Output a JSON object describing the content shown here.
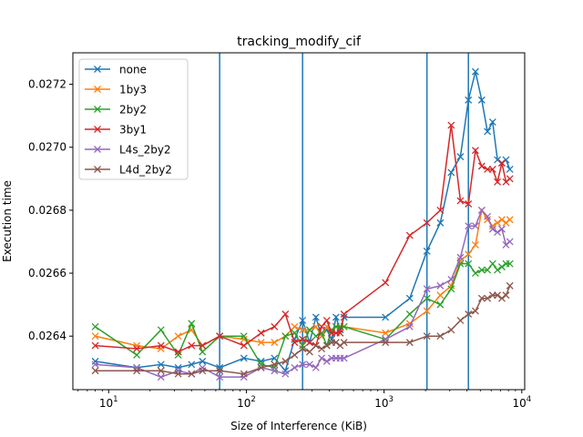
{
  "chart_data": {
    "type": "line",
    "title": "tracking_modify_cif",
    "xlabel": "Size of Interference (KiB)",
    "ylabel": "Execution time",
    "xscale": "log",
    "xlim": [
      5.5,
      10500
    ],
    "ylim": [
      0.02623,
      0.0273
    ],
    "grid": false,
    "legend_position": "top-left",
    "x_ticks": [
      {
        "value": 10,
        "base": "10",
        "exp": "1"
      },
      {
        "value": 100,
        "base": "10",
        "exp": "2"
      },
      {
        "value": 1000,
        "base": "10",
        "exp": "3"
      },
      {
        "value": 10000,
        "base": "10",
        "exp": "4"
      }
    ],
    "y_ticks": [
      {
        "value": 0.0264,
        "label": "0.0264"
      },
      {
        "value": 0.0266,
        "label": "0.0266"
      },
      {
        "value": 0.0268,
        "label": "0.0268"
      },
      {
        "value": 0.027,
        "label": "0.0270"
      },
      {
        "value": 0.0272,
        "label": "0.0272"
      }
    ],
    "vlines": {
      "color": "#1f77b4",
      "x": [
        64,
        256,
        2048,
        4096
      ]
    },
    "series": [
      {
        "name": "none",
        "color": "#1f77b4",
        "x": [
          8,
          16,
          24,
          32,
          40,
          48,
          64,
          96,
          128,
          160,
          192,
          224,
          256,
          288,
          320,
          352,
          384,
          416,
          448,
          480,
          512,
          1024,
          1536,
          2048,
          2560,
          3072,
          3584,
          4096,
          4608,
          5120,
          5632,
          6144,
          6656,
          7168,
          7680,
          8192
        ],
        "y": [
          0.02632,
          0.0263,
          0.02631,
          0.0263,
          0.02631,
          0.02632,
          0.0263,
          0.02633,
          0.02632,
          0.02633,
          0.02629,
          0.02639,
          0.02645,
          0.02638,
          0.02646,
          0.0264,
          0.02642,
          0.02639,
          0.02646,
          0.02642,
          0.02646,
          0.02646,
          0.02652,
          0.02667,
          0.02676,
          0.02692,
          0.02697,
          0.02715,
          0.02724,
          0.02715,
          0.02705,
          0.02708,
          0.02696,
          0.02695,
          0.02696,
          0.02693
        ]
      },
      {
        "name": "1by3",
        "color": "#ff7f0e",
        "x": [
          8,
          16,
          24,
          32,
          40,
          48,
          64,
          96,
          128,
          160,
          192,
          224,
          256,
          288,
          320,
          352,
          384,
          416,
          448,
          480,
          512,
          1024,
          1536,
          2048,
          2560,
          3072,
          3584,
          4096,
          4608,
          5120,
          5632,
          6144,
          6656,
          7168,
          7680,
          8192
        ],
        "y": [
          0.0264,
          0.02637,
          0.02636,
          0.0264,
          0.02642,
          0.02637,
          0.0264,
          0.02639,
          0.02638,
          0.02638,
          0.0264,
          0.02643,
          0.02642,
          0.02642,
          0.02643,
          0.0264,
          0.02643,
          0.02641,
          0.02643,
          0.02643,
          0.02643,
          0.02641,
          0.02644,
          0.02648,
          0.02653,
          0.02656,
          0.02664,
          0.02666,
          0.02669,
          0.0268,
          0.02677,
          0.02675,
          0.02676,
          0.02677,
          0.02676,
          0.02677
        ]
      },
      {
        "name": "2by2",
        "color": "#2ca02c",
        "x": [
          8,
          16,
          24,
          32,
          40,
          48,
          64,
          96,
          128,
          160,
          192,
          224,
          256,
          288,
          320,
          352,
          384,
          416,
          448,
          480,
          512,
          1024,
          1536,
          2048,
          2560,
          3072,
          3584,
          4096,
          4608,
          5120,
          5632,
          6144,
          6656,
          7168,
          7680,
          8192
        ],
        "y": [
          0.02643,
          0.02634,
          0.02642,
          0.02634,
          0.02644,
          0.02635,
          0.0264,
          0.0264,
          0.02631,
          0.0263,
          0.0264,
          0.02641,
          0.02637,
          0.02642,
          0.0264,
          0.02641,
          0.02637,
          0.02642,
          0.02643,
          0.02643,
          0.02643,
          0.02639,
          0.02647,
          0.02652,
          0.0265,
          0.02655,
          0.02663,
          0.02663,
          0.0266,
          0.02661,
          0.02661,
          0.02663,
          0.02661,
          0.02662,
          0.02663,
          0.02663
        ]
      },
      {
        "name": "3by1",
        "color": "#d62728",
        "x": [
          8,
          16,
          24,
          32,
          40,
          48,
          64,
          96,
          128,
          160,
          192,
          224,
          256,
          288,
          320,
          352,
          384,
          416,
          448,
          480,
          512,
          1024,
          1536,
          2048,
          2560,
          3072,
          3584,
          4096,
          4608,
          5120,
          5632,
          6144,
          6656,
          7168,
          7680,
          8192
        ],
        "y": [
          0.02637,
          0.02636,
          0.02637,
          0.02635,
          0.02637,
          0.02637,
          0.0264,
          0.02637,
          0.02641,
          0.02643,
          0.02647,
          0.02638,
          0.02639,
          0.02638,
          0.02637,
          0.02643,
          0.02645,
          0.02641,
          0.02641,
          0.02641,
          0.02647,
          0.02657,
          0.02672,
          0.02676,
          0.0268,
          0.02707,
          0.02683,
          0.02682,
          0.02699,
          0.02694,
          0.02693,
          0.02693,
          0.02689,
          0.02695,
          0.02689,
          0.0269
        ]
      },
      {
        "name": "L4s_2by2",
        "color": "#9467bd",
        "x": [
          8,
          16,
          24,
          32,
          40,
          48,
          64,
          96,
          128,
          160,
          192,
          224,
          256,
          288,
          320,
          352,
          384,
          416,
          448,
          480,
          512,
          1024,
          1536,
          2048,
          2560,
          3072,
          3584,
          4096,
          4608,
          5120,
          5632,
          6144,
          6656,
          7168,
          7680,
          8192
        ],
        "y": [
          0.02631,
          0.0263,
          0.02627,
          0.02629,
          0.02628,
          0.0263,
          0.02627,
          0.02627,
          0.0263,
          0.02629,
          0.02628,
          0.0263,
          0.02631,
          0.02631,
          0.0263,
          0.02633,
          0.02632,
          0.02633,
          0.02633,
          0.02633,
          0.02633,
          0.02639,
          0.02643,
          0.02655,
          0.02656,
          0.02658,
          0.02665,
          0.02675,
          0.02675,
          0.0268,
          0.02678,
          0.02674,
          0.02673,
          0.02674,
          0.02669,
          0.0267
        ]
      },
      {
        "name": "L4d_2by2",
        "color": "#8c564b",
        "x": [
          8,
          16,
          24,
          32,
          40,
          48,
          64,
          96,
          128,
          160,
          192,
          224,
          256,
          288,
          320,
          352,
          384,
          416,
          448,
          480,
          512,
          1024,
          1536,
          2048,
          2560,
          3072,
          3584,
          4096,
          4608,
          5120,
          5632,
          6144,
          6656,
          7168,
          7680,
          8192
        ],
        "y": [
          0.02629,
          0.02629,
          0.02629,
          0.02628,
          0.02628,
          0.02629,
          0.02629,
          0.02628,
          0.0263,
          0.02631,
          0.02632,
          0.02634,
          0.02636,
          0.02635,
          0.02637,
          0.02636,
          0.02637,
          0.02638,
          0.02638,
          0.02637,
          0.02638,
          0.02638,
          0.02638,
          0.0264,
          0.0264,
          0.02642,
          0.02645,
          0.02647,
          0.02648,
          0.02652,
          0.02652,
          0.02653,
          0.02653,
          0.02652,
          0.02653,
          0.02656
        ]
      }
    ]
  }
}
